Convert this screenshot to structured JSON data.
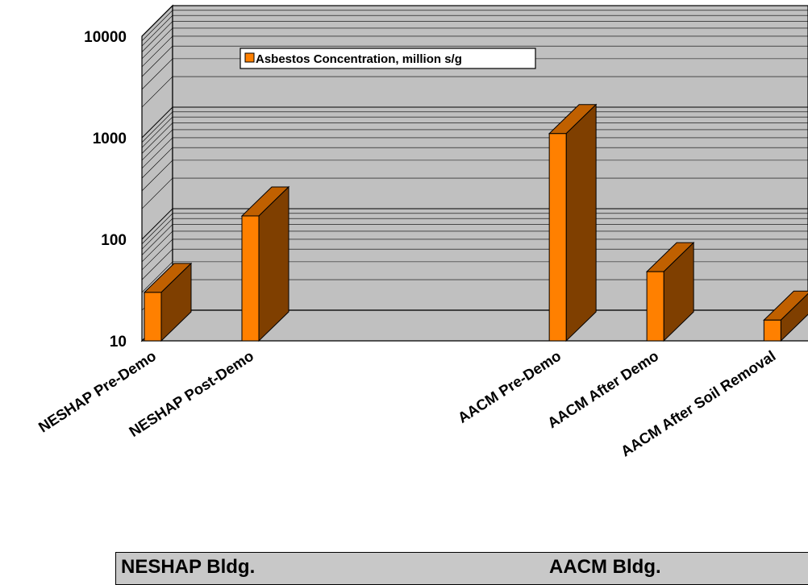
{
  "chart_data": {
    "type": "bar",
    "style": "3d-column",
    "yscale": "log",
    "ylim": [
      10,
      10000
    ],
    "y_ticks": [
      "10",
      "100",
      "1000",
      "10000"
    ],
    "categories": [
      "NESHAP Pre-Demo",
      "NESHAP Post-Demo",
      "AACM Pre-Demo",
      "AACM After Demo",
      "AACM After Soil Removal"
    ],
    "series": [
      {
        "name": "Asbestos Concentration, million s/g",
        "values": [
          30,
          170,
          1100,
          48,
          16
        ],
        "color": "#ff8000",
        "side_color": "#7f3f00",
        "top_color": "#c06000"
      }
    ],
    "legend_position": "top-left",
    "grid": true,
    "wall_color": "#c0c0c0"
  },
  "groups": {
    "left": "NESHAP Bldg.",
    "right": "AACM Bldg."
  }
}
